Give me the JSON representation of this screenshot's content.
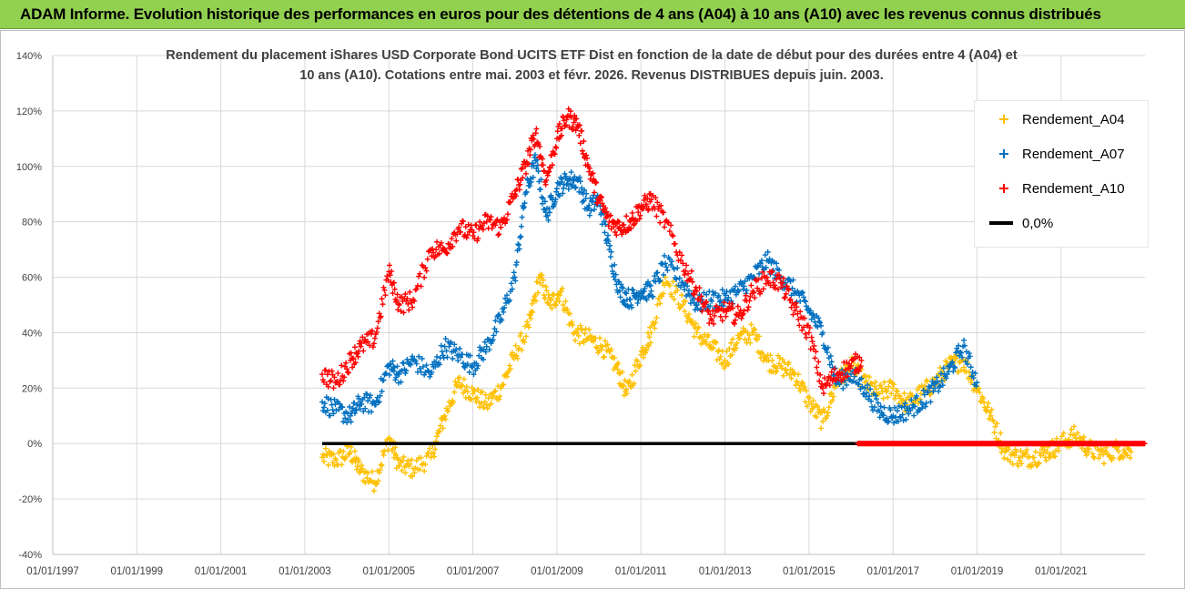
{
  "banner": {
    "title": "ADAM Informe. Evolution historique des performances en euros pour des détentions de 4 ans (A04) à 10 ans (A10) avec les revenus connus distribués"
  },
  "colors": {
    "banner_bg": "#92d050",
    "A04": "#ffc000",
    "A07": "#0070c0",
    "A10": "#ff0000",
    "zero_line": "#000000",
    "grid": "#d9d9d9"
  },
  "chart_data": {
    "type": "scatter",
    "title": "Rendement du placement iShares USD Corporate Bond UCITS ETF Dist en fonction de la date de début pour des durées entre 4 (A04) et 10 ans (A10). Cotations entre mai. 2003 et févr. 2026. Revenus DISTRIBUES depuis juin. 2003.",
    "xlabel": "",
    "ylabel": "",
    "x_axis_type": "date",
    "xlim": [
      "1997-01-01",
      "2022-12-31"
    ],
    "ylim": [
      -40,
      140
    ],
    "y_unit": "%",
    "grid": true,
    "legend_position": "right",
    "x_tick_labels": [
      "01/01/1997",
      "01/01/1999",
      "01/01/2001",
      "01/01/2003",
      "01/01/2005",
      "01/01/2007",
      "01/01/2009",
      "01/01/2011",
      "01/01/2013",
      "01/01/2015",
      "01/01/2017",
      "01/01/2019",
      "01/01/2021"
    ],
    "x_ticks": [
      "1997-01-01",
      "1999-01-01",
      "2001-01-01",
      "2003-01-01",
      "2005-01-01",
      "2007-01-01",
      "2009-01-01",
      "2011-01-01",
      "2013-01-01",
      "2015-01-01",
      "2017-01-01",
      "2019-01-01",
      "2021-01-01"
    ],
    "y_tick_labels": [
      "140%",
      "120%",
      "100%",
      "80%",
      "60%",
      "40%",
      "20%",
      "0%",
      "-20%",
      "-40%"
    ],
    "y_ticks": [
      140,
      120,
      100,
      80,
      60,
      40,
      20,
      0,
      -20,
      -40
    ],
    "series": [
      {
        "name": "Rendement_A04",
        "color": "#ffc000",
        "x": [
          "2003-06-01",
          "2003-10-01",
          "2004-02-01",
          "2004-05-01",
          "2004-09-01",
          "2005-01-01",
          "2005-04-01",
          "2005-08-01",
          "2006-01-01",
          "2006-05-01",
          "2006-09-01",
          "2007-01-01",
          "2007-05-01",
          "2007-09-01",
          "2008-01-01",
          "2008-05-01",
          "2008-08-01",
          "2008-11-01",
          "2009-02-01",
          "2009-06-01",
          "2009-10-01",
          "2010-02-01",
          "2010-06-01",
          "2010-09-01",
          "2011-01-01",
          "2011-04-01",
          "2011-08-01",
          "2012-01-01",
          "2012-05-01",
          "2012-09-01",
          "2013-01-01",
          "2013-05-01",
          "2013-09-01",
          "2014-01-01",
          "2014-05-01",
          "2014-09-01",
          "2015-01-01",
          "2015-05-01",
          "2015-09-01",
          "2016-01-01",
          "2016-05-01",
          "2016-09-01",
          "2017-01-01",
          "2017-05-01",
          "2017-09-01",
          "2018-01-01",
          "2018-05-01",
          "2018-09-01",
          "2019-01-01",
          "2019-05-01",
          "2019-09-01",
          "2020-01-01",
          "2020-05-01",
          "2020-09-01",
          "2021-01-01",
          "2021-05-01",
          "2021-09-01",
          "2022-01-01",
          "2022-05-01",
          "2022-09-01"
        ],
        "values": [
          -5,
          -6,
          -3,
          -10,
          -14,
          2,
          -8,
          -9,
          -5,
          10,
          22,
          18,
          14,
          20,
          32,
          42,
          60,
          50,
          55,
          40,
          38,
          35,
          28,
          18,
          32,
          40,
          60,
          50,
          40,
          35,
          30,
          38,
          40,
          30,
          28,
          25,
          15,
          8,
          22,
          28,
          22,
          18,
          20,
          14,
          18,
          22,
          28,
          30,
          20,
          10,
          -3,
          -5,
          -5,
          -3,
          0,
          3,
          -2,
          -4,
          -2,
          -3
        ]
      },
      {
        "name": "Rendement_A07",
        "color": "#0070c0",
        "x": [
          "2003-06-01",
          "2003-10-01",
          "2004-02-01",
          "2004-05-01",
          "2004-09-01",
          "2005-01-01",
          "2005-04-01",
          "2005-08-01",
          "2006-01-01",
          "2006-05-01",
          "2006-09-01",
          "2007-01-01",
          "2007-05-01",
          "2007-09-01",
          "2008-01-01",
          "2008-04-01",
          "2008-07-01",
          "2008-10-01",
          "2009-01-01",
          "2009-04-01",
          "2009-07-01",
          "2009-10-01",
          "2010-01-01",
          "2010-04-01",
          "2010-07-01",
          "2010-10-01",
          "2011-01-01",
          "2011-04-01",
          "2011-08-01",
          "2012-01-01",
          "2012-05-01",
          "2012-09-01",
          "2013-01-01",
          "2013-05-01",
          "2013-09-01",
          "2014-01-01",
          "2014-05-01",
          "2014-09-01",
          "2015-01-01",
          "2015-05-01",
          "2015-09-01",
          "2016-01-01",
          "2016-05-01",
          "2016-09-01",
          "2017-01-01",
          "2017-05-01",
          "2017-09-01",
          "2018-01-01",
          "2018-05-01",
          "2018-09-01",
          "2019-01-01"
        ],
        "values": [
          15,
          12,
          10,
          15,
          14,
          28,
          25,
          30,
          25,
          35,
          32,
          28,
          35,
          45,
          60,
          90,
          102,
          82,
          92,
          95,
          95,
          85,
          88,
          70,
          55,
          52,
          55,
          55,
          65,
          58,
          50,
          52,
          52,
          55,
          60,
          66,
          60,
          55,
          48,
          40,
          22,
          25,
          20,
          12,
          10,
          12,
          15,
          20,
          26,
          35,
          22
        ]
      },
      {
        "name": "Rendement_A10",
        "color": "#ff0000",
        "x": [
          "2003-06-01",
          "2003-10-01",
          "2004-02-01",
          "2004-05-01",
          "2004-09-01",
          "2005-01-01",
          "2005-04-01",
          "2005-08-01",
          "2006-01-01",
          "2006-05-01",
          "2006-09-01",
          "2007-01-01",
          "2007-05-01",
          "2007-09-01",
          "2008-01-01",
          "2008-04-01",
          "2008-07-01",
          "2008-10-01",
          "2009-01-01",
          "2009-04-01",
          "2009-07-01",
          "2009-10-01",
          "2010-01-01",
          "2010-04-01",
          "2010-07-01",
          "2010-10-01",
          "2011-01-01",
          "2011-04-01",
          "2011-08-01",
          "2012-01-01",
          "2012-05-01",
          "2012-09-01",
          "2013-01-01",
          "2013-05-01",
          "2013-09-01",
          "2014-01-01",
          "2014-05-01",
          "2014-09-01",
          "2015-01-01",
          "2015-05-01",
          "2015-09-01",
          "2016-01-01",
          "2016-04-01"
        ],
        "values": [
          25,
          22,
          30,
          35,
          38,
          62,
          50,
          52,
          70,
          70,
          78,
          75,
          80,
          78,
          90,
          100,
          112,
          95,
          110,
          118,
          115,
          100,
          88,
          80,
          78,
          80,
          85,
          88,
          80,
          65,
          55,
          45,
          48,
          46,
          55,
          60,
          58,
          48,
          40,
          20,
          25,
          28,
          30
        ]
      },
      {
        "name": "0,0%",
        "color": "#000000",
        "x": [
          "2003-06-01",
          "2022-12-31"
        ],
        "values": [
          0,
          0
        ]
      }
    ]
  },
  "legend": {
    "items": [
      {
        "label": "Rendement_A04",
        "color": "#ffc000",
        "marker": "+"
      },
      {
        "label": "Rendement_A07",
        "color": "#0070c0",
        "marker": "+"
      },
      {
        "label": "Rendement_A10",
        "color": "#ff0000",
        "marker": "+"
      },
      {
        "label": "0,0%",
        "color": "#000000",
        "marker": "line"
      }
    ]
  }
}
